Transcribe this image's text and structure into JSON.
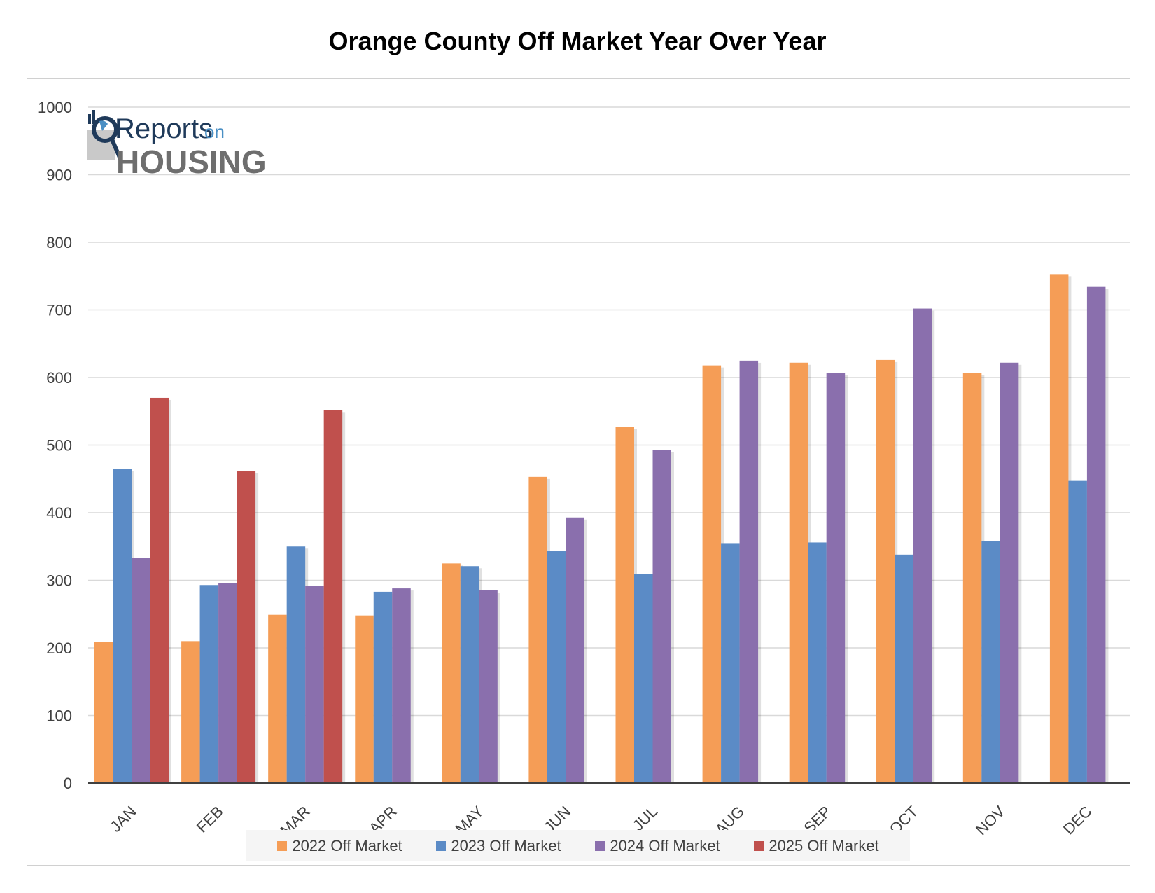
{
  "chart_data": {
    "type": "bar",
    "title": "Orange County Off Market Year Over Year",
    "categories": [
      "JAN",
      "FEB",
      "MAR",
      "APR",
      "MAY",
      "JUN",
      "JUL",
      "AUG",
      "SEP",
      "OCT",
      "NOV",
      "DEC"
    ],
    "series": [
      {
        "name": "2022 Off Market",
        "color": "#F59D56",
        "values": [
          209,
          210,
          249,
          248,
          325,
          453,
          527,
          618,
          622,
          626,
          607,
          753
        ]
      },
      {
        "name": "2023 Off Market",
        "color": "#5B8BC6",
        "values": [
          465,
          293,
          350,
          283,
          321,
          343,
          309,
          355,
          356,
          338,
          358,
          447
        ]
      },
      {
        "name": "2024 Off Market",
        "color": "#8A6FAD",
        "values": [
          333,
          296,
          292,
          288,
          285,
          393,
          493,
          625,
          607,
          702,
          622,
          734
        ]
      },
      {
        "name": "2025 Off Market",
        "color": "#C0504D",
        "values": [
          570,
          462,
          552,
          null,
          null,
          null,
          null,
          null,
          null,
          null,
          null,
          null
        ]
      }
    ],
    "ylim": [
      0,
      1000
    ],
    "yticks": [
      0,
      100,
      200,
      300,
      400,
      500,
      600,
      700,
      800,
      900,
      1000
    ],
    "grid": true,
    "legend_position": "bottom",
    "xlabel": "",
    "ylabel": ""
  },
  "logo": {
    "line1": "Reports",
    "line1_suffix": "on",
    "line2": "HOUSING"
  }
}
